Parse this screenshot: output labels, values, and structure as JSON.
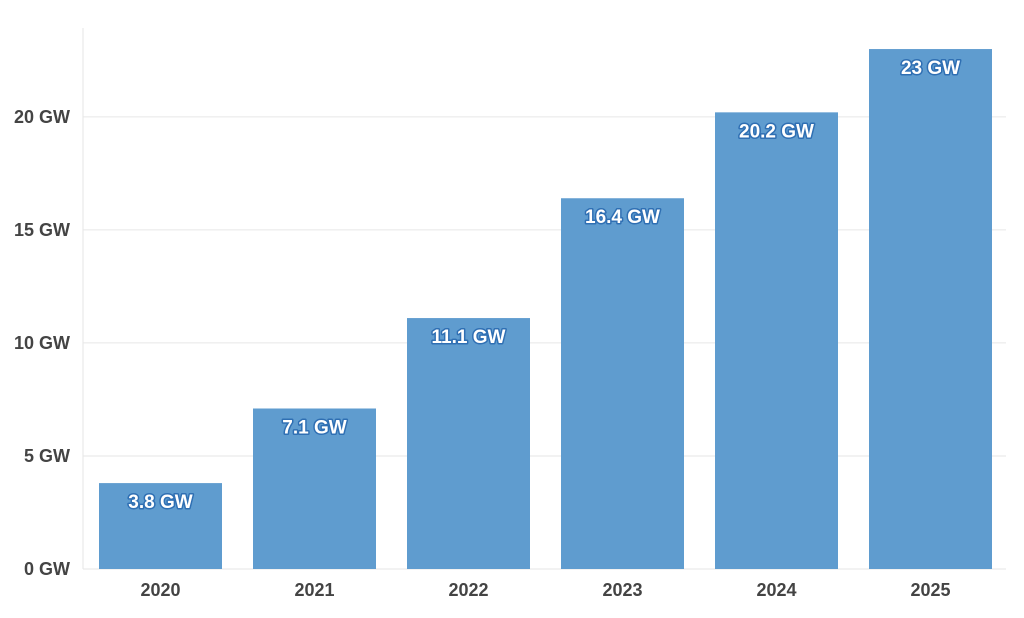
{
  "chart_data": {
    "type": "bar",
    "categories": [
      "2020",
      "2021",
      "2022",
      "2023",
      "2024",
      "2025"
    ],
    "values": [
      3.8,
      7.1,
      11.1,
      16.4,
      20.2,
      23
    ],
    "data_labels": [
      "3.8 GW",
      "7.1 GW",
      "11.1 GW",
      "16.4 GW",
      "20.2 GW",
      "23 GW"
    ],
    "y_ticks": [
      0,
      5,
      10,
      15,
      20
    ],
    "y_tick_labels": [
      "0 GW",
      "5 GW",
      "10 GW",
      "15 GW",
      "20 GW"
    ],
    "ylim": [
      0,
      23.4
    ],
    "title": "",
    "xlabel": "",
    "ylabel": "",
    "grid": true,
    "legend": "none",
    "colors": {
      "bar": "#5f9ccf",
      "gridline": "#e6e6e6",
      "axis_text": "#444444",
      "label_text": "#ffffff",
      "label_outline": "#2f6fb3"
    }
  }
}
